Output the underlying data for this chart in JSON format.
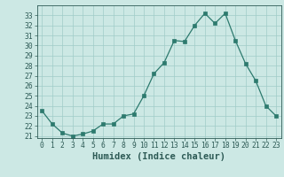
{
  "x": [
    0,
    1,
    2,
    3,
    4,
    5,
    6,
    7,
    8,
    9,
    10,
    11,
    12,
    13,
    14,
    15,
    16,
    17,
    18,
    19,
    20,
    21,
    22,
    23
  ],
  "y": [
    23.5,
    22.2,
    21.3,
    21.0,
    21.2,
    21.5,
    22.2,
    22.2,
    23.0,
    23.2,
    25.0,
    27.2,
    28.3,
    30.5,
    30.4,
    32.0,
    33.2,
    32.2,
    33.2,
    30.5,
    28.2,
    26.5,
    24.0,
    23.0
  ],
  "xlabel": "Humidex (Indice chaleur)",
  "ylim": [
    21,
    34
  ],
  "xlim": [
    -0.5,
    23.5
  ],
  "yticks": [
    21,
    22,
    23,
    24,
    25,
    26,
    27,
    28,
    29,
    30,
    31,
    32,
    33
  ],
  "xticks": [
    0,
    1,
    2,
    3,
    4,
    5,
    6,
    7,
    8,
    9,
    10,
    11,
    12,
    13,
    14,
    15,
    16,
    17,
    18,
    19,
    20,
    21,
    22,
    23
  ],
  "line_color": "#2d7a6e",
  "marker_color": "#2d7a6e",
  "bg_color": "#cce8e4",
  "grid_color": "#a0ccc8",
  "tick_color": "#2d5a55",
  "label_color": "#2d5a55",
  "tick_fontsize": 5.8,
  "label_fontsize": 7.5
}
